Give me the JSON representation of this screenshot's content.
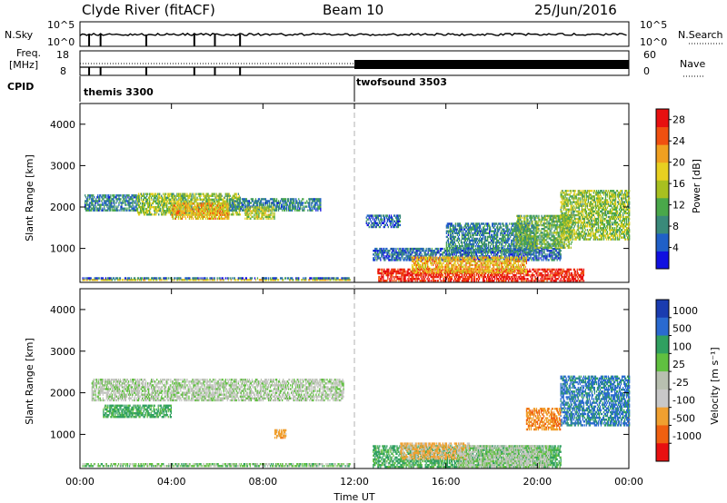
{
  "header": {
    "title": "Clyde River (fitACF)",
    "beam": "Beam 10",
    "date": "25/Jun/2016"
  },
  "status_panels": {
    "nsky_label": "N.Sky",
    "nsearch_label": "N.Search",
    "nsky_ticks": [
      "10^5",
      "10^0"
    ],
    "nsearch_ticks": [
      "10^5",
      "10^0"
    ],
    "freq_label_line1": "Freq.",
    "freq_label_line2": "[MHz]",
    "freq_ticks": [
      "18",
      "8"
    ],
    "nave_label": "Nave",
    "nave_ticks": [
      "60",
      "0"
    ],
    "cpid_label": "CPID",
    "cpid_programs": [
      {
        "name": "themis 3300",
        "start_hour": 0
      },
      {
        "name": "twofsound 3503",
        "start_hour": 12
      }
    ]
  },
  "chart_data": [
    {
      "type": "heatmap",
      "parameter": "Power",
      "xlabel": "",
      "ylabel": "Slant Range [km]",
      "x_range_hours": [
        0,
        24
      ],
      "ylim": [
        180,
        4500
      ],
      "y_ticks": [
        "1000",
        "2000",
        "3000",
        "4000"
      ],
      "colorbar": {
        "label": "Power [dB]",
        "ticks": [
          "4",
          "8",
          "12",
          "16",
          "20",
          "24",
          "28"
        ],
        "range": [
          0,
          30
        ],
        "colors": [
          "#1010e0",
          "#2060c8",
          "#3a8a7a",
          "#4aa84a",
          "#a8c020",
          "#e8d020",
          "#f0a020",
          "#f05010",
          "#e81010"
        ]
      },
      "regions": [
        {
          "t": [
            0.1,
            11.8
          ],
          "r": [
            220,
            260
          ],
          "level": 18
        },
        {
          "t": [
            0.1,
            11.8
          ],
          "r": [
            260,
            300
          ],
          "level": 6
        },
        {
          "t": [
            0.2,
            2.5
          ],
          "r": [
            1900,
            2300
          ],
          "level": 8
        },
        {
          "t": [
            2.5,
            7.0
          ],
          "r": [
            1800,
            2300
          ],
          "level": 14
        },
        {
          "t": [
            4.0,
            6.5
          ],
          "r": [
            1700,
            2100
          ],
          "level": 20
        },
        {
          "t": [
            6.5,
            10.5
          ],
          "r": [
            1900,
            2200
          ],
          "level": 8
        },
        {
          "t": [
            7.2,
            8.5
          ],
          "r": [
            1700,
            2000
          ],
          "level": 16
        },
        {
          "t": [
            12.5,
            14.0
          ],
          "r": [
            1500,
            1800
          ],
          "level": 6
        },
        {
          "t": [
            12.8,
            21.0
          ],
          "r": [
            700,
            1000
          ],
          "level": 6
        },
        {
          "t": [
            13.0,
            22.0
          ],
          "r": [
            200,
            500
          ],
          "level": 28
        },
        {
          "t": [
            14.5,
            19.5
          ],
          "r": [
            400,
            800
          ],
          "level": 20
        },
        {
          "t": [
            16.0,
            20.0
          ],
          "r": [
            900,
            1600
          ],
          "level": 8
        },
        {
          "t": [
            19.0,
            21.5
          ],
          "r": [
            1000,
            1800
          ],
          "level": 12
        },
        {
          "t": [
            21.0,
            24.0
          ],
          "r": [
            1200,
            2400
          ],
          "level": 14
        }
      ]
    },
    {
      "type": "heatmap",
      "parameter": "Velocity",
      "xlabel": "Time UT",
      "ylabel": "Slant Range [km]",
      "x_range_hours": [
        0,
        24
      ],
      "x_ticks": [
        "00:00",
        "04:00",
        "08:00",
        "12:00",
        "16:00",
        "20:00",
        "00:00"
      ],
      "ylim": [
        180,
        4500
      ],
      "y_ticks": [
        "1000",
        "2000",
        "3000",
        "4000"
      ],
      "colorbar": {
        "label": "Velocity [m s⁻¹]",
        "ticks": [
          "1000",
          "500",
          "100",
          "25",
          "-25",
          "-100",
          "-500",
          "-1000"
        ],
        "colors": [
          "#1a3cb0",
          "#2a6ad0",
          "#30a060",
          "#60c040",
          "#b8c0b0",
          "#c8c8c8",
          "#f0a030",
          "#f06010",
          "#e81010"
        ]
      },
      "regions": [
        {
          "t": [
            0.1,
            11.8
          ],
          "r": [
            220,
            300
          ],
          "vel": 50
        },
        {
          "t": [
            0.5,
            11.5
          ],
          "r": [
            1800,
            2300
          ],
          "vel": 0
        },
        {
          "t": [
            1.0,
            4.0
          ],
          "r": [
            1400,
            1700
          ],
          "vel": 150
        },
        {
          "t": [
            8.5,
            9.0
          ],
          "r": [
            900,
            1100
          ],
          "vel": -300
        },
        {
          "t": [
            12.8,
            21.0
          ],
          "r": [
            200,
            700
          ],
          "vel": 150
        },
        {
          "t": [
            14.0,
            17.0
          ],
          "r": [
            400,
            800
          ],
          "vel": -150
        },
        {
          "t": [
            16.5,
            20.5
          ],
          "r": [
            200,
            700
          ],
          "vel": 0
        },
        {
          "t": [
            21.0,
            24.0
          ],
          "r": [
            1200,
            2400
          ],
          "vel": 600
        },
        {
          "t": [
            19.5,
            21.0
          ],
          "r": [
            1100,
            1600
          ],
          "vel": -400
        }
      ]
    }
  ],
  "colors": {
    "divider": "#b0b0b0",
    "background": "#ffffff"
  }
}
